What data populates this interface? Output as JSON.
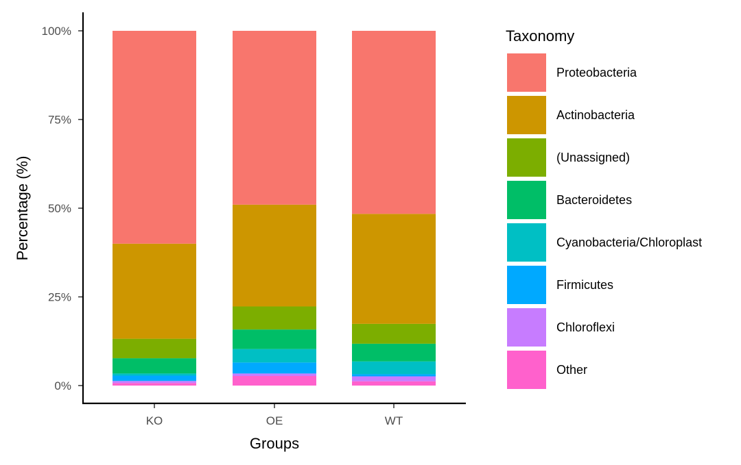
{
  "chart_data": {
    "type": "bar",
    "stacked": true,
    "categories": [
      "KO",
      "OE",
      "WT"
    ],
    "xlabel": "Groups",
    "ylabel": "Percentage (%)",
    "ylim": [
      0,
      100
    ],
    "yticks": [
      0,
      25,
      50,
      75,
      100
    ],
    "ytick_labels": [
      "0%",
      "25%",
      "50%",
      "75%",
      "100%"
    ],
    "legend_title": "Taxonomy",
    "legend_position": "right",
    "series": [
      {
        "name": "Proteobacteria",
        "color": "#F8766D",
        "values": [
          60.0,
          49.0,
          51.6
        ]
      },
      {
        "name": "Actinobacteria",
        "color": "#CD9600",
        "values": [
          26.8,
          28.7,
          31.0
        ]
      },
      {
        "name": "(Unassigned)",
        "color": "#7CAE00",
        "values": [
          5.5,
          6.5,
          5.6
        ]
      },
      {
        "name": "Bacteroidetes",
        "color": "#00BE67",
        "values": [
          4.3,
          5.5,
          5.0
        ]
      },
      {
        "name": "Cyanobacteria/Chloroplast",
        "color": "#00BFC4",
        "values": [
          0.6,
          3.8,
          3.6
        ]
      },
      {
        "name": "Firmicutes",
        "color": "#00A9FF",
        "values": [
          1.5,
          3.1,
          0.6
        ]
      },
      {
        "name": "Chloroflexi",
        "color": "#C77CFF",
        "values": [
          0.6,
          0.7,
          1.4
        ]
      },
      {
        "name": "Other",
        "color": "#FF61CC",
        "values": [
          0.7,
          2.7,
          1.2
        ]
      }
    ]
  }
}
